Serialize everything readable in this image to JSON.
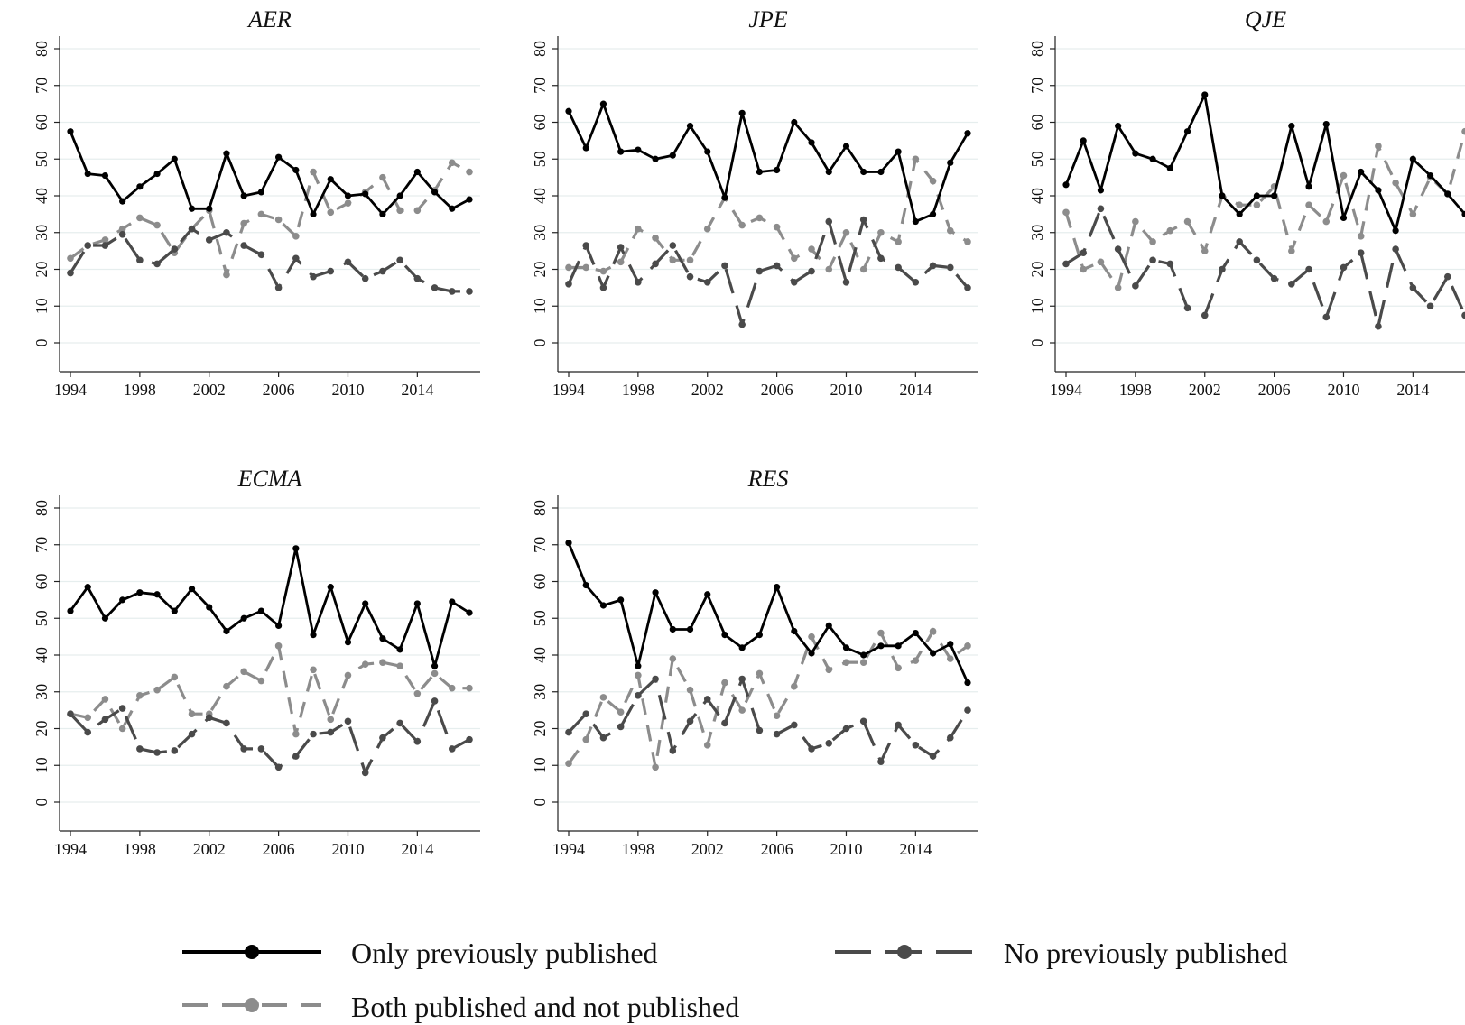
{
  "legend": {
    "items": [
      {
        "label": "Only previously published",
        "series": 0
      },
      {
        "label": "No previously published",
        "series": 2
      },
      {
        "label": "Both published and not published",
        "series": 1
      }
    ]
  },
  "styles": [
    {
      "color": "#000000",
      "dash": "none"
    },
    {
      "color": "#8c8c8c",
      "dash": "dashed"
    },
    {
      "color": "#4a4a4a",
      "dash": "long-dash"
    }
  ],
  "chart_data": [
    {
      "type": "line",
      "title": "AER",
      "xlim": [
        1994,
        2017
      ],
      "xticks": [
        1994,
        1998,
        2002,
        2006,
        2010,
        2014
      ],
      "ylim": [
        0,
        80
      ],
      "yticks": [
        0,
        10,
        20,
        30,
        40,
        50,
        60,
        70,
        80
      ],
      "grid": true,
      "x": [
        1994,
        1995,
        1996,
        1997,
        1998,
        1999,
        2000,
        2001,
        2002,
        2003,
        2004,
        2005,
        2006,
        2007,
        2008,
        2009,
        2010,
        2011,
        2012,
        2013,
        2014,
        2015,
        2016,
        2017
      ],
      "series": [
        {
          "name": "Only previously published",
          "values": [
            57.5,
            46,
            45.5,
            38.5,
            42.5,
            46,
            50,
            36.5,
            36.5,
            51.5,
            40,
            41,
            50.5,
            47,
            35,
            44.5,
            40,
            40.5,
            35,
            40,
            46.5,
            41,
            36.5,
            39
          ]
        },
        {
          "name": "Both published and not published",
          "values": [
            23,
            26.5,
            28,
            31,
            34,
            32,
            24.5,
            31,
            36,
            18.5,
            32.5,
            35,
            33.5,
            29,
            46.5,
            35.5,
            38,
            41,
            45,
            36,
            36,
            41.5,
            49,
            46.5
          ]
        },
        {
          "name": "No previously published",
          "values": [
            19,
            26.5,
            26.5,
            29.5,
            22.5,
            21.5,
            25.5,
            31,
            28,
            30,
            26.5,
            24,
            15,
            23,
            18,
            19.5,
            22,
            17.5,
            19.5,
            22.5,
            17.5,
            15,
            14,
            14
          ]
        }
      ]
    },
    {
      "type": "line",
      "title": "JPE",
      "xlim": [
        1994,
        2017
      ],
      "xticks": [
        1994,
        1998,
        2002,
        2006,
        2010,
        2014
      ],
      "ylim": [
        0,
        80
      ],
      "yticks": [
        0,
        10,
        20,
        30,
        40,
        50,
        60,
        70,
        80
      ],
      "grid": true,
      "x": [
        1994,
        1995,
        1996,
        1997,
        1998,
        1999,
        2000,
        2001,
        2002,
        2003,
        2004,
        2005,
        2006,
        2007,
        2008,
        2009,
        2010,
        2011,
        2012,
        2013,
        2014,
        2015,
        2016,
        2017
      ],
      "series": [
        {
          "name": "Only previously published",
          "values": [
            63,
            53,
            65,
            52,
            52.5,
            50,
            51,
            59,
            52,
            39.5,
            62.5,
            46.5,
            47,
            60,
            54.5,
            46.5,
            53.5,
            46.5,
            46.5,
            52,
            33,
            35,
            49,
            57
          ]
        },
        {
          "name": "Both published and not published",
          "values": [
            20.5,
            20.5,
            19.5,
            22,
            31,
            28.5,
            22.5,
            22.5,
            31,
            39.5,
            32,
            34,
            31.5,
            23,
            25.5,
            20,
            30,
            20,
            30,
            27.5,
            50,
            44,
            30.5,
            27.5
          ]
        },
        {
          "name": "No previously published",
          "values": [
            16,
            26.5,
            15,
            26,
            16.5,
            21.5,
            26.5,
            18,
            16.5,
            21,
            5,
            19.5,
            21,
            16.5,
            19.5,
            33,
            16.5,
            33.5,
            23,
            20.5,
            16.5,
            21,
            20.5,
            15
          ]
        }
      ]
    },
    {
      "type": "line",
      "title": "QJE",
      "xlim": [
        1994,
        2017
      ],
      "xticks": [
        1994,
        1998,
        2002,
        2006,
        2010,
        2014
      ],
      "ylim": [
        0,
        80
      ],
      "yticks": [
        0,
        10,
        20,
        30,
        40,
        50,
        60,
        70,
        80
      ],
      "grid": true,
      "x": [
        1994,
        1995,
        1996,
        1997,
        1998,
        1999,
        2000,
        2001,
        2002,
        2003,
        2004,
        2005,
        2006,
        2007,
        2008,
        2009,
        2010,
        2011,
        2012,
        2013,
        2014,
        2015,
        2016,
        2017
      ],
      "series": [
        {
          "name": "Only previously published",
          "values": [
            43,
            55,
            41.5,
            59,
            51.5,
            50,
            47.5,
            57.5,
            67.5,
            40,
            35,
            40,
            40,
            59,
            42.5,
            59.5,
            34,
            46.5,
            41.5,
            30.5,
            50,
            45.5,
            40.5,
            35
          ]
        },
        {
          "name": "Both published and not published",
          "values": [
            35.5,
            20,
            22,
            15,
            33,
            27.5,
            30.5,
            33,
            25,
            40,
            37.5,
            37.5,
            42.5,
            25,
            37.5,
            33,
            45.5,
            29,
            53.5,
            43.5,
            35,
            45,
            40.5,
            57.5
          ]
        },
        {
          "name": "No previously published",
          "values": [
            21.5,
            24.5,
            36.5,
            25.5,
            15.5,
            22.5,
            21.5,
            9.5,
            7.5,
            20,
            27.5,
            22.5,
            17.5,
            16,
            20,
            7,
            20.5,
            24.5,
            4.5,
            25.5,
            15,
            10,
            18,
            7.5
          ]
        }
      ]
    },
    {
      "type": "line",
      "title": "ECMA",
      "xlim": [
        1994,
        2017
      ],
      "xticks": [
        1994,
        1998,
        2002,
        2006,
        2010,
        2014
      ],
      "ylim": [
        0,
        80
      ],
      "yticks": [
        0,
        10,
        20,
        30,
        40,
        50,
        60,
        70,
        80
      ],
      "grid": true,
      "x": [
        1994,
        1995,
        1996,
        1997,
        1998,
        1999,
        2000,
        2001,
        2002,
        2003,
        2004,
        2005,
        2006,
        2007,
        2008,
        2009,
        2010,
        2011,
        2012,
        2013,
        2014,
        2015,
        2016,
        2017
      ],
      "series": [
        {
          "name": "Only previously published",
          "values": [
            52,
            58.5,
            50,
            55,
            57,
            56.5,
            52,
            58,
            53,
            46.5,
            50,
            52,
            48,
            69,
            45.5,
            58.5,
            43.5,
            54,
            44.5,
            41.5,
            54,
            37,
            54.5,
            51.5
          ]
        },
        {
          "name": "Both published and not published",
          "values": [
            24,
            23,
            28,
            20,
            29,
            30.5,
            34,
            24,
            24,
            31.5,
            35.5,
            33,
            42.5,
            18.5,
            36,
            22.5,
            34.5,
            37.5,
            38,
            37,
            29.5,
            35,
            31,
            31
          ]
        },
        {
          "name": "No previously published",
          "values": [
            24,
            19,
            22.5,
            25.5,
            14.5,
            13.5,
            14,
            18.5,
            23,
            21.5,
            14.5,
            14.5,
            9.5,
            12.5,
            18.5,
            19,
            22,
            8,
            17.5,
            21.5,
            16.5,
            27.5,
            14.5,
            17
          ]
        }
      ]
    },
    {
      "type": "line",
      "title": "RES",
      "xlim": [
        1994,
        2017
      ],
      "xticks": [
        1994,
        1998,
        2002,
        2006,
        2010,
        2014
      ],
      "ylim": [
        0,
        80
      ],
      "yticks": [
        0,
        10,
        20,
        30,
        40,
        50,
        60,
        70,
        80
      ],
      "grid": true,
      "x": [
        1994,
        1995,
        1996,
        1997,
        1998,
        1999,
        2000,
        2001,
        2002,
        2003,
        2004,
        2005,
        2006,
        2007,
        2008,
        2009,
        2010,
        2011,
        2012,
        2013,
        2014,
        2015,
        2016,
        2017
      ],
      "series": [
        {
          "name": "Only previously published",
          "values": [
            70.5,
            59,
            53.5,
            55,
            37,
            57,
            47,
            47,
            56.5,
            45.5,
            42,
            45.5,
            58.5,
            46.5,
            40.5,
            48,
            42,
            40,
            42.5,
            42.5,
            46,
            40.5,
            43,
            32.5
          ]
        },
        {
          "name": "Both published and not published",
          "values": [
            10.5,
            17,
            28.5,
            24.5,
            34.5,
            9.5,
            39,
            30.5,
            15.5,
            32.5,
            25,
            35,
            23.5,
            31.5,
            45,
            36,
            38,
            38,
            46,
            36.5,
            38.5,
            46.5,
            39,
            42.5
          ]
        },
        {
          "name": "No previously published",
          "values": [
            19,
            24,
            17.5,
            20.5,
            29,
            33.5,
            14,
            22,
            28,
            21.5,
            33.5,
            19.5,
            18.5,
            21,
            14.5,
            16,
            20,
            22,
            11,
            21,
            15.5,
            12.5,
            17.5,
            25
          ]
        }
      ]
    }
  ]
}
